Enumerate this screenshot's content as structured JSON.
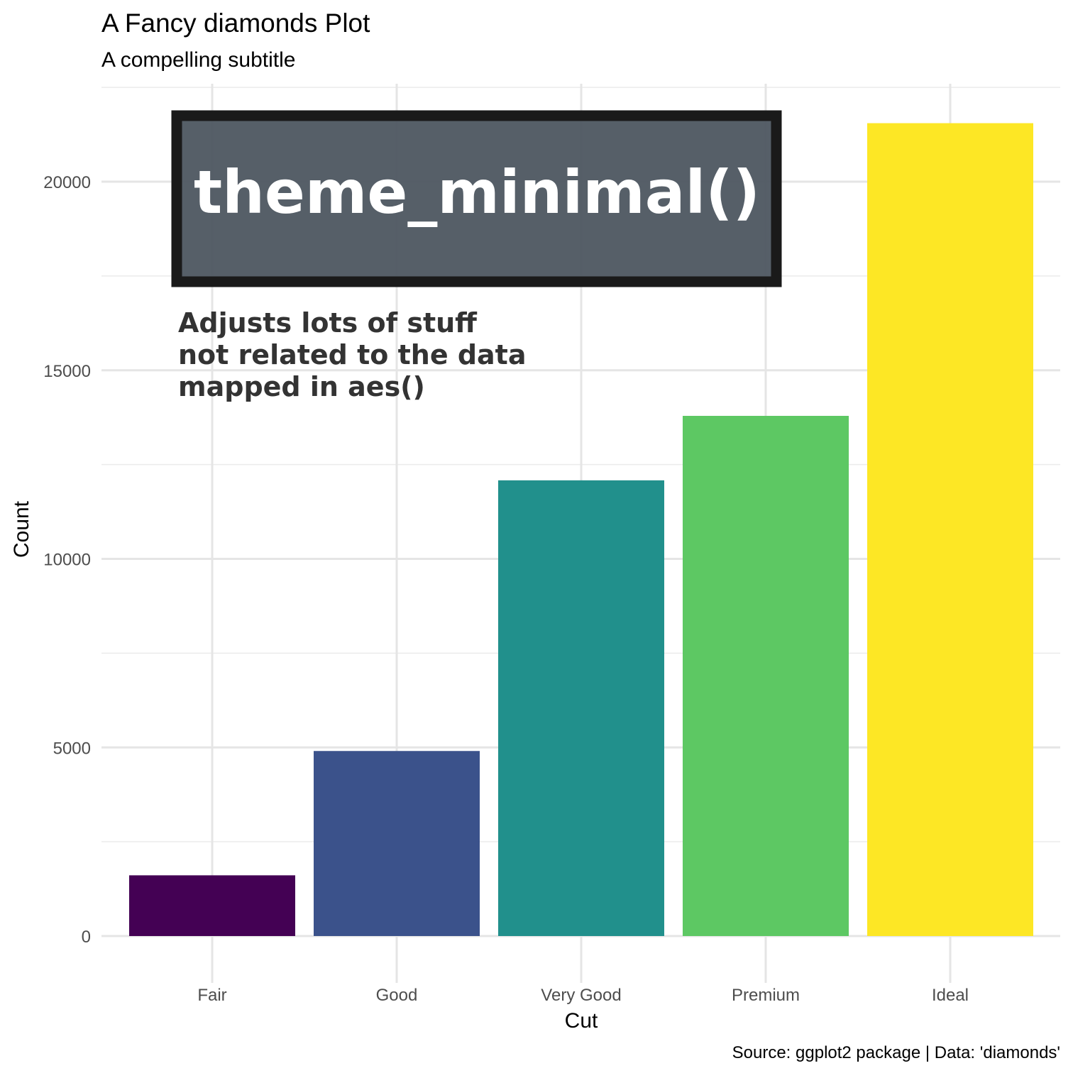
{
  "chart_data": {
    "type": "bar",
    "title": "A Fancy diamonds Plot",
    "subtitle": "A compelling subtitle",
    "xlabel": "Cut",
    "ylabel": "Count",
    "caption": "Source: ggplot2 package | Data: 'diamonds'",
    "categories": [
      "Fair",
      "Good",
      "Very Good",
      "Premium",
      "Ideal"
    ],
    "values": [
      1610,
      4906,
      12082,
      13791,
      21551
    ],
    "colors": [
      "#440154",
      "#3B528B",
      "#21908C",
      "#5DC863",
      "#FDE725"
    ],
    "ylim": [
      0,
      22600
    ],
    "yticks": [
      0,
      5000,
      10000,
      15000,
      20000
    ],
    "ytick_labels": [
      "0",
      "5000",
      "10000",
      "15000",
      "20000"
    ],
    "grid": true,
    "legend": "none"
  },
  "annotations": {
    "banner": "theme_minimal()",
    "note_lines": [
      "Adjusts lots of stuff",
      "not related to the data",
      "mapped in aes()"
    ]
  }
}
